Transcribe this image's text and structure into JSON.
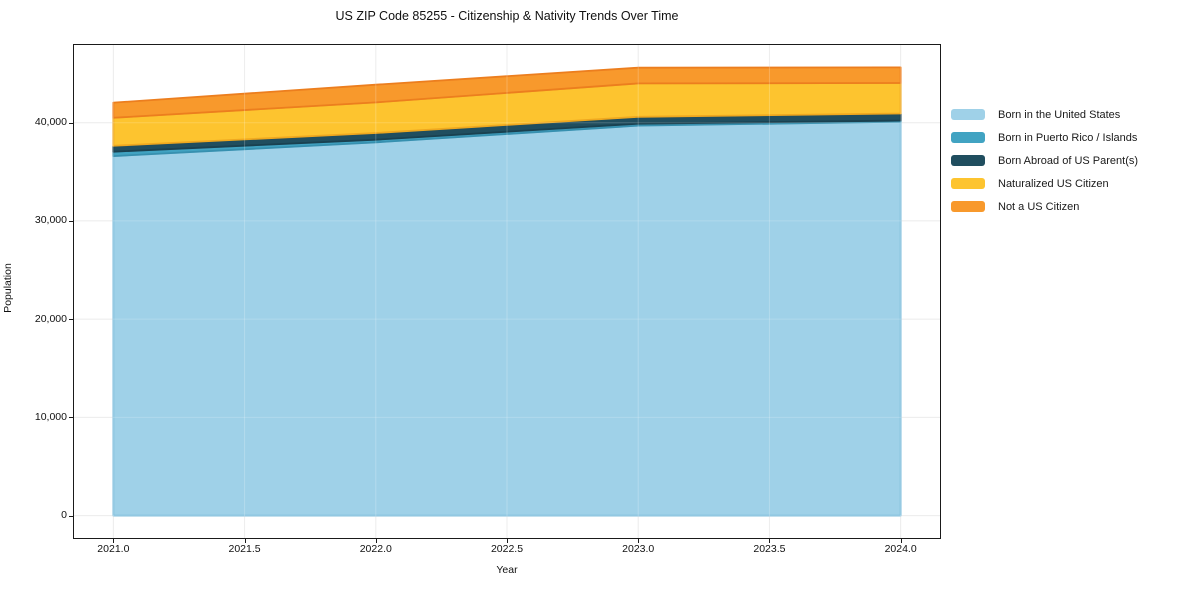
{
  "chart_data": {
    "type": "area",
    "stacked": true,
    "title": "US ZIP Code 85255 - Citizenship & Nativity Trends Over Time",
    "xlabel": "Year",
    "ylabel": "Population",
    "x": [
      2021,
      2022,
      2023,
      2024
    ],
    "series": [
      {
        "name": "Born in the United States",
        "color": "#9FD1E8",
        "edge_color": "#7FBEDC",
        "values": [
          36600,
          38000,
          39700,
          40100
        ]
      },
      {
        "name": "Born in Puerto Rico / Islands",
        "color": "#41A3C2",
        "edge_color": "#3790AF",
        "values": [
          450,
          270,
          200,
          120
        ]
      },
      {
        "name": "Born Abroad of US Parent(s)",
        "color": "#204E5F",
        "edge_color": "#1A4150",
        "values": [
          600,
          680,
          700,
          720
        ]
      },
      {
        "name": "Naturalized US Citizen",
        "color": "#FDC42F",
        "edge_color": "#EFA81F",
        "values": [
          2850,
          3120,
          3400,
          3100
        ]
      },
      {
        "name": "Not a US Citizen",
        "color": "#F8992C",
        "edge_color": "#EC7E1E",
        "values": [
          1540,
          1800,
          1600,
          1590
        ]
      }
    ],
    "xlim": [
      2020.85,
      2024.15
    ],
    "ylim": [
      -2280,
      47910
    ],
    "xticks": [
      2021.0,
      2021.5,
      2022.0,
      2022.5,
      2023.0,
      2023.5,
      2024.0
    ],
    "xtick_labels": [
      "2021.0",
      "2021.5",
      "2022.0",
      "2022.5",
      "2023.0",
      "2023.5",
      "2024.0"
    ],
    "yticks": [
      0,
      10000,
      20000,
      30000,
      40000
    ],
    "ytick_labels": [
      "0",
      "10,000",
      "20,000",
      "30,000",
      "40,000"
    ],
    "grid": true,
    "grid_color": "#E8E8E8",
    "legend_position": "right"
  }
}
